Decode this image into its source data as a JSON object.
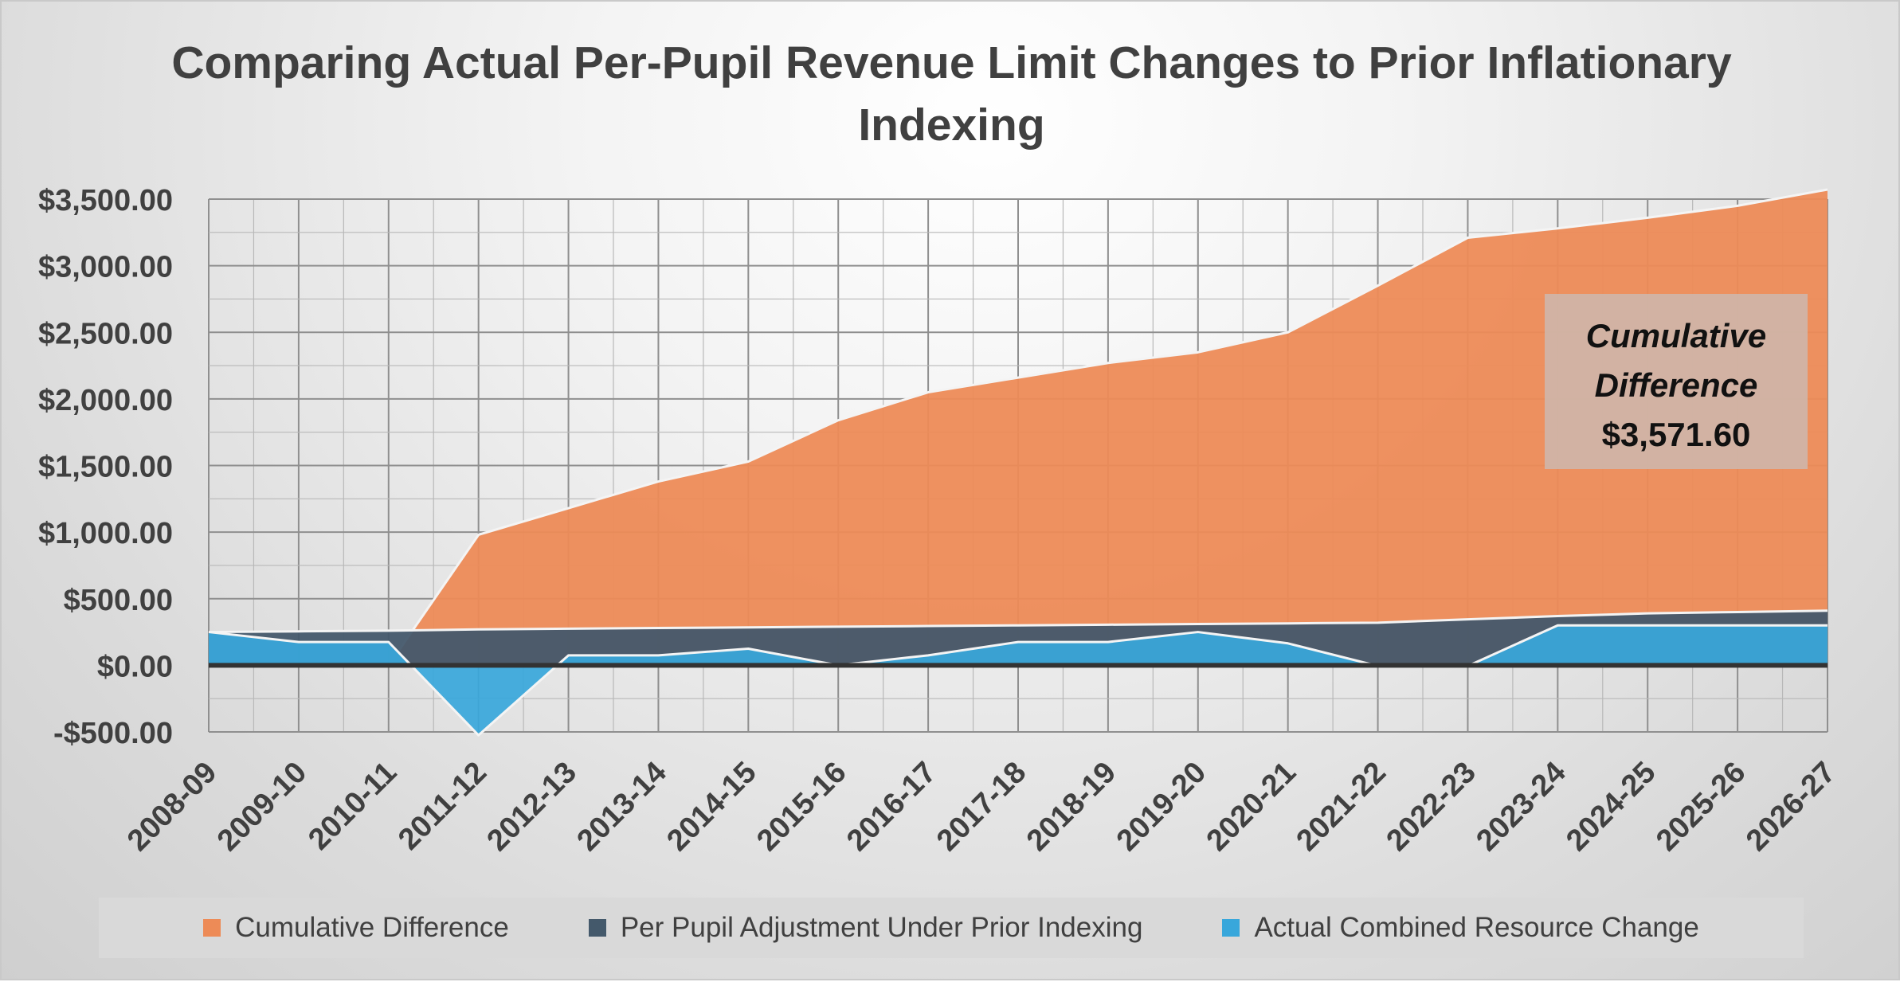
{
  "chart_data": {
    "type": "area",
    "title": "Comparing Actual Per-Pupil Revenue Limit Changes to Prior Inflationary Indexing",
    "title_lines": [
      "Comparing Actual Per-Pupil Revenue Limit Changes to Prior Inflationary",
      "Indexing"
    ],
    "categories": [
      "2008-09",
      "2009-10",
      "2010-11",
      "2011-12",
      "2012-13",
      "2013-14",
      "2014-15",
      "2015-16",
      "2016-17",
      "2017-18",
      "2018-19",
      "2019-20",
      "2020-21",
      "2021-22",
      "2022-23",
      "2023-24",
      "2024-25",
      "2025-26",
      "2026-27"
    ],
    "ylim": [
      -500,
      3500
    ],
    "yticks": [
      -500,
      0,
      500,
      1000,
      1500,
      2000,
      2500,
      3000,
      3500
    ],
    "ytick_labels": [
      "-$500.00",
      "$0.00",
      "$500.00",
      "$1,000.00",
      "$1,500.00",
      "$2,000.00",
      "$2,500.00",
      "$3,000.00",
      "$3,500.00"
    ],
    "grid": true,
    "legend_position": "bottom",
    "series": [
      {
        "name": "Cumulative Difference",
        "color": "#ED8B57",
        "values": [
          0,
          0,
          0,
          980,
          1180,
          1380,
          1530,
          1840,
          2050,
          2160,
          2270,
          2350,
          2500,
          2850,
          3210,
          3280,
          3360,
          3450,
          3571.6
        ]
      },
      {
        "name": "Per Pupil Adjustment Under Prior Indexing",
        "color": "#44596B",
        "values": [
          250,
          255,
          260,
          270,
          275,
          280,
          285,
          290,
          295,
          300,
          305,
          310,
          315,
          320,
          345,
          370,
          390,
          400,
          410
        ]
      },
      {
        "name": "Actual Combined Resource Change",
        "color": "#38A7DB",
        "values": [
          250,
          175,
          175,
          -525,
          75,
          75,
          125,
          0,
          75,
          175,
          175,
          250,
          165,
          -5,
          -5,
          300,
          300,
          300,
          300
        ]
      }
    ],
    "annotation": {
      "line1": "Cumulative",
      "line2": "Difference",
      "value": "$3,571.60"
    }
  }
}
